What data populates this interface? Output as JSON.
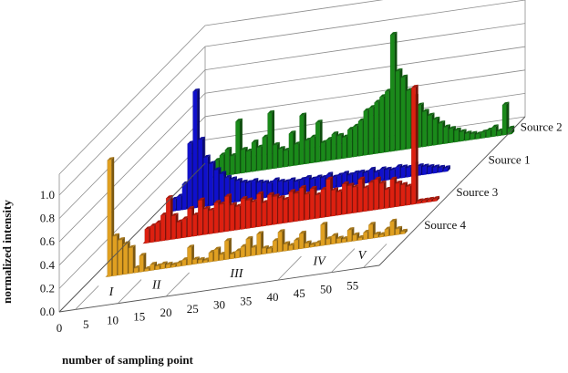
{
  "chart_data": {
    "type": "bar",
    "projection": "3d",
    "xlabel": "number of sampling point",
    "ylabel": "normalized intensity",
    "x_ticks": [
      "0",
      "5",
      "10",
      "15",
      "20",
      "25",
      "30",
      "35",
      "40",
      "45",
      "50",
      "55"
    ],
    "y_ticks": [
      "0.0",
      "0.2",
      "0.4",
      "0.6",
      "0.8",
      "1.0"
    ],
    "xlim": [
      0,
      60
    ],
    "ylim": [
      0,
      1.0
    ],
    "grid": true,
    "regions": [
      {
        "label": "I",
        "from": 3,
        "to": 11
      },
      {
        "label": "II",
        "from": 11,
        "to": 20
      },
      {
        "label": "III",
        "from": 20,
        "to": 41
      },
      {
        "label": "IV",
        "from": 41,
        "to": 51
      },
      {
        "label": "V",
        "from": 51,
        "to": 57
      }
    ],
    "series": [
      {
        "name": "Source 4",
        "color": "#E0A021",
        "values": [
          1.0,
          0.34,
          0.3,
          0.26,
          0.22,
          0.04,
          0.14,
          0.02,
          0.05,
          0.03,
          0.04,
          0.03,
          0.02,
          0.03,
          0.05,
          0.15,
          0.04,
          0.03,
          0.02,
          0.08,
          0.1,
          0.05,
          0.16,
          0.04,
          0.06,
          0.09,
          0.15,
          0.07,
          0.18,
          0.05,
          0.04,
          0.1,
          0.17,
          0.06,
          0.04,
          0.08,
          0.13,
          0.04,
          0.02,
          0.03,
          0.18,
          0.05,
          0.07,
          0.04,
          0.03,
          0.1,
          0.05,
          0.02,
          0.06,
          0.12,
          0.03,
          0.02,
          0.06,
          0.12,
          0.05,
          0.02
        ]
      },
      {
        "name": "Source 3",
        "color": "#DD2010",
        "values": [
          0.12,
          0.14,
          0.16,
          0.22,
          0.36,
          0.2,
          0.14,
          0.16,
          0.24,
          0.18,
          0.3,
          0.22,
          0.2,
          0.26,
          0.24,
          0.3,
          0.22,
          0.2,
          0.26,
          0.24,
          0.22,
          0.28,
          0.2,
          0.26,
          0.24,
          0.22,
          0.2,
          0.26,
          0.24,
          0.28,
          0.22,
          0.26,
          0.2,
          0.24,
          0.32,
          0.22,
          0.2,
          0.26,
          0.24,
          0.22,
          0.28,
          0.2,
          0.24,
          0.26,
          0.22,
          0.16,
          0.24,
          0.2,
          0.18,
          0.16,
          1.0,
          0.02,
          0.02,
          0.02,
          0.02
        ]
      },
      {
        "name": "Source 1",
        "color": "#1010CC",
        "values": [
          0.1,
          0.12,
          0.22,
          0.56,
          1.0,
          0.58,
          0.42,
          0.36,
          0.3,
          0.26,
          0.22,
          0.2,
          0.18,
          0.16,
          0.15,
          0.16,
          0.14,
          0.13,
          0.12,
          0.14,
          0.12,
          0.11,
          0.12,
          0.1,
          0.11,
          0.12,
          0.1,
          0.11,
          0.1,
          0.12,
          0.09,
          0.1,
          0.11,
          0.09,
          0.1,
          0.1,
          0.09,
          0.11,
          0.08,
          0.1,
          0.09,
          0.08,
          0.1,
          0.09,
          0.08,
          0.1,
          0.08,
          0.07,
          0.06,
          0.05,
          0.04,
          0.03
        ]
      },
      {
        "name": "Source 2",
        "color": "#1A8A1A",
        "values": [
          0.14,
          0.18,
          0.22,
          0.16,
          0.45,
          0.2,
          0.18,
          0.25,
          0.2,
          0.28,
          0.48,
          0.2,
          0.16,
          0.14,
          0.28,
          0.18,
          0.42,
          0.2,
          0.22,
          0.34,
          0.16,
          0.18,
          0.22,
          0.2,
          0.18,
          0.24,
          0.26,
          0.3,
          0.38,
          0.4,
          0.44,
          0.48,
          0.52,
          1.0,
          0.68,
          0.62,
          0.5,
          0.44,
          0.36,
          0.3,
          0.26,
          0.22,
          0.18,
          0.14,
          0.12,
          0.1,
          0.08,
          0.06,
          0.05,
          0.04,
          0.05,
          0.06,
          0.08,
          0.04,
          0.26,
          0.05
        ]
      }
    ]
  }
}
